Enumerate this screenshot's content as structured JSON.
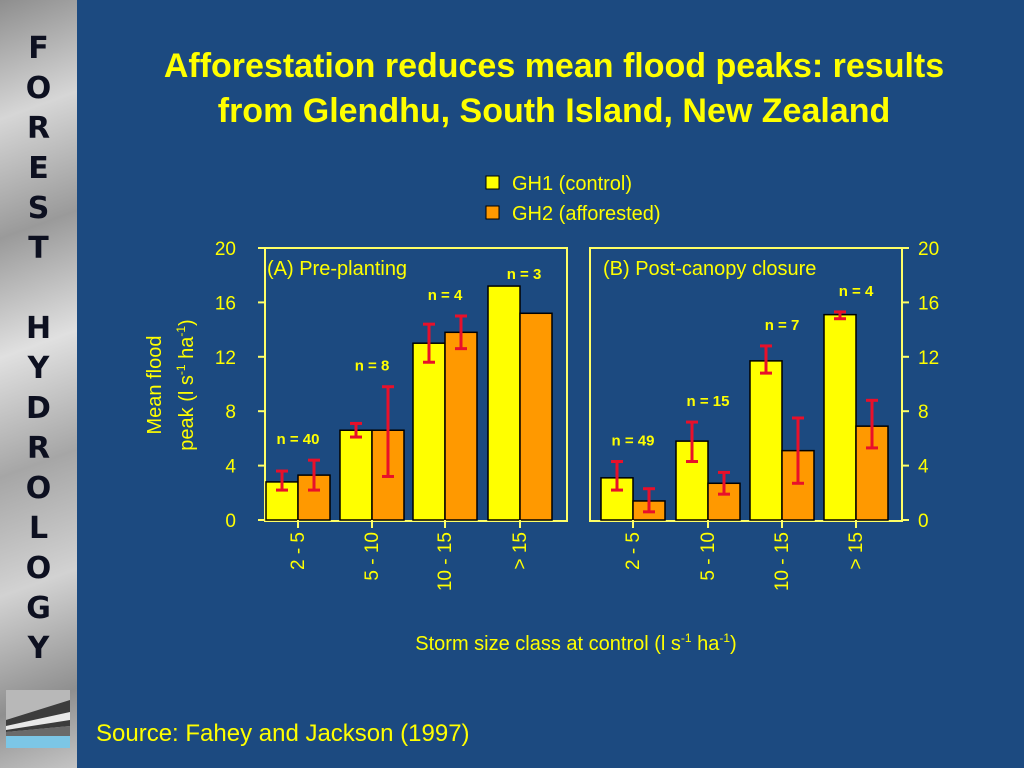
{
  "sidebar": {
    "word1": [
      "F",
      "O",
      "R",
      "E",
      "S",
      "T"
    ],
    "word2": [
      "H",
      "Y",
      "D",
      "R",
      "O",
      "L",
      "O",
      "G",
      "Y"
    ]
  },
  "title": {
    "line1": "Afforestation reduces mean flood peaks: results",
    "line2": "from Glendhu, South Island, New Zealand"
  },
  "source": "Source: Fahey and Jackson (1997)",
  "colors": {
    "background": "#1c4a80",
    "title": "#ffff00",
    "gh1": "#ffff00",
    "gh2": "#ff9900",
    "error_bar": "#e8102a",
    "axis": "#ffff66",
    "text": "#ffff00"
  },
  "chart_data": {
    "type": "bar",
    "legend": [
      "GH1 (control)",
      "GH2 (afforested)"
    ],
    "legend_position": "top-center",
    "ylabel_line1": "Mean flood",
    "ylabel_line2": "peak (l s",
    "ylabel_sup1": "-1",
    "ylabel_mid": " ha",
    "ylabel_sup2": "-1",
    "ylabel_end": ")",
    "xlabel_main": "Storm size class at control (l s",
    "xlabel_sup1": "-1",
    "xlabel_mid": " ha",
    "xlabel_sup2": "-1",
    "xlabel_end": ")",
    "ylim": [
      0,
      20
    ],
    "yticks": [
      0,
      4,
      8,
      12,
      16,
      20
    ],
    "grid": false,
    "panels": [
      {
        "title": "(A) Pre-planting",
        "categories": [
          "2 - 5",
          "5 - 10",
          "10 - 15",
          "> 15"
        ],
        "n_labels": [
          "n = 40",
          "n = 8",
          "n = 4",
          "n = 3"
        ],
        "series": [
          {
            "name": "GH1 (control)",
            "values": [
              2.8,
              6.6,
              13.0,
              17.2
            ],
            "errors": [
              [
                2.2,
                3.6
              ],
              [
                6.1,
                7.1
              ],
              [
                11.6,
                14.4
              ],
              null
            ]
          },
          {
            "name": "GH2 (afforested)",
            "values": [
              3.3,
              6.6,
              13.8,
              15.2
            ],
            "errors": [
              [
                2.2,
                4.4
              ],
              [
                3.2,
                9.8
              ],
              [
                12.6,
                15.0
              ],
              null
            ]
          }
        ]
      },
      {
        "title": "(B) Post-canopy closure",
        "categories": [
          "2 - 5",
          "5 - 10",
          "10 - 15",
          "> 15"
        ],
        "n_labels": [
          "n = 49",
          "n = 15",
          "n = 7",
          "n = 4"
        ],
        "series": [
          {
            "name": "GH1 (control)",
            "values": [
              3.1,
              5.8,
              11.7,
              15.1
            ],
            "errors": [
              [
                2.2,
                4.3
              ],
              [
                4.3,
                7.2
              ],
              [
                10.8,
                12.8
              ],
              [
                14.8,
                15.3
              ]
            ]
          },
          {
            "name": "GH2 (afforested)",
            "values": [
              1.4,
              2.7,
              5.1,
              6.9
            ],
            "errors": [
              [
                0.6,
                2.3
              ],
              [
                1.9,
                3.5
              ],
              [
                2.7,
                7.5
              ],
              [
                5.3,
                8.8
              ]
            ]
          }
        ]
      }
    ]
  }
}
